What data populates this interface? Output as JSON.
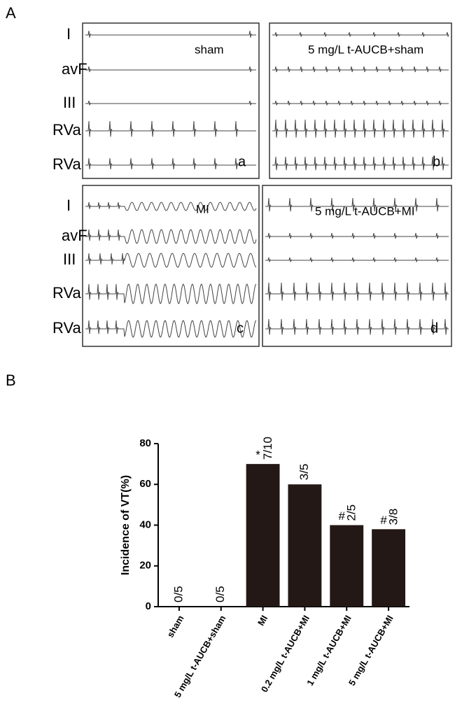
{
  "panel_labels": [
    "A",
    "B"
  ],
  "ecg": {
    "leads_top": [
      "I",
      "avF",
      "III",
      "RVa",
      "RVa"
    ],
    "leads_bottom": [
      "I",
      "avF",
      "III",
      "RVa",
      "RVa"
    ],
    "recordings": [
      {
        "title": "sham",
        "letter": "a"
      },
      {
        "title": "5 mg/L t-AUCB+sham",
        "letter": "b"
      },
      {
        "title": "MI",
        "letter": "c"
      },
      {
        "title": "5 mg/L t-AUCB+MI",
        "letter": "d"
      }
    ]
  },
  "chart_data": {
    "type": "bar",
    "y_label": "Incidence of VT(%)",
    "categories": [
      "sham",
      "5 mg/L t-AUCB+sham",
      "MI",
      "0.2 mg/L t-AUCB+MI",
      "1 mg/L t-AUCB+MI",
      "5 mg/L t-AUCB+MI"
    ],
    "values": [
      0,
      0,
      70,
      60,
      40,
      38
    ],
    "fractions": [
      "0/5",
      "0/5",
      "7/10",
      "3/5",
      "2/5",
      "3/8"
    ],
    "markers": [
      null,
      null,
      "*",
      null,
      "#",
      "#"
    ],
    "color": "#231815",
    "ylim": [
      0,
      80
    ],
    "yticks": [
      0,
      20,
      40,
      60,
      80
    ]
  }
}
